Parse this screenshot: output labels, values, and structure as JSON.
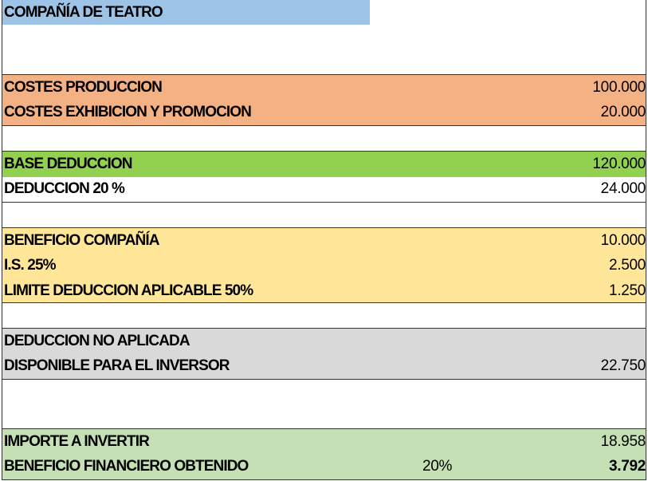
{
  "colors": {
    "title": "#9dc3e6",
    "costs": "#f4b183",
    "base": "#92d050",
    "benefit": "#ffe699",
    "unapplied": "#d9d9d9",
    "investment": "#c5e0b4"
  },
  "title": "COMPAÑÍA DE TEATRO",
  "costs": [
    {
      "label": "COSTES PRODUCCION",
      "value": "100.000"
    },
    {
      "label": "COSTES EXHIBICION Y PROMOCION",
      "value": "20.000"
    }
  ],
  "deduction": [
    {
      "label": "BASE DEDUCCION",
      "value": "120.000"
    },
    {
      "label": "DEDUCCION 20 %",
      "value": "24.000"
    }
  ],
  "benefit": [
    {
      "label": "BENEFICIO COMPAÑÍA",
      "value": "10.000"
    },
    {
      "label": "I.S. 25%",
      "value": "2.500"
    },
    {
      "label": "LIMITE DEDUCCION APLICABLE 50%",
      "value": "1.250"
    }
  ],
  "unapplied": [
    {
      "label": "DEDUCCION NO APLICADA"
    },
    {
      "label": "DISPONIBLE PARA EL INVERSOR",
      "value": "22.750"
    }
  ],
  "investment": [
    {
      "label": "IMPORTE A INVERTIR",
      "value": "18.958"
    },
    {
      "label": "BENEFICIO FINANCIERO OBTENIDO",
      "rate": "20%",
      "value": "3.792"
    }
  ]
}
